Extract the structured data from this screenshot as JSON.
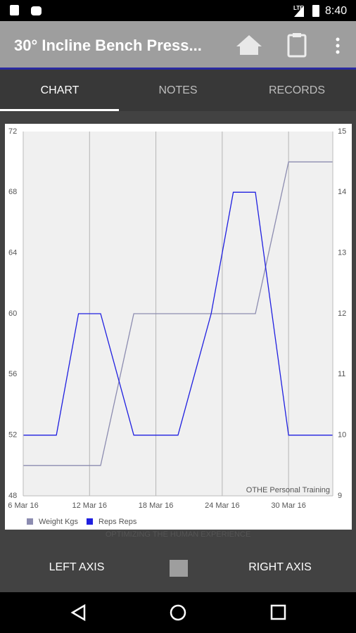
{
  "status_bar": {
    "time": "8:40",
    "network": "LTE"
  },
  "toolbar": {
    "title": "30° Incline Bench Press..."
  },
  "tabs": [
    "CHART",
    "NOTES",
    "RECORDS"
  ],
  "chart_data": {
    "type": "line",
    "watermark": "OTHE Personal Training",
    "background_text": "OPTIMIZING THE HUMAN EXPERIENCE",
    "x": [
      "2016-03-06",
      "2016-03-09",
      "2016-03-11",
      "2016-03-13",
      "2016-03-16",
      "2016-03-20",
      "2016-03-23",
      "2016-03-25",
      "2016-03-27",
      "2016-03-30",
      "2016-04-03"
    ],
    "series": [
      {
        "name": "Weight Kgs",
        "color": "#8c8cb0",
        "values": [
          50,
          50,
          50,
          50,
          60,
          60,
          60,
          60,
          60,
          70,
          70
        ]
      },
      {
        "name": "Reps Reps",
        "color": "#1f1fe0",
        "axis": "y2",
        "values": [
          10,
          10,
          12,
          12,
          10,
          10,
          12,
          14,
          14,
          10,
          10
        ]
      }
    ],
    "xlim": [
      "2016-03-06",
      "2016-04-03"
    ],
    "xticks": [
      {
        "value": "2016-03-06",
        "label": "6 Mar 16"
      },
      {
        "value": "2016-03-12",
        "label": "12 Mar 16"
      },
      {
        "value": "2016-03-18",
        "label": "18 Mar 16"
      },
      {
        "value": "2016-03-24",
        "label": "24 Mar 16"
      },
      {
        "value": "2016-03-30",
        "label": "30 Mar 16"
      }
    ],
    "ylim": [
      48,
      72
    ],
    "yticks": [
      48,
      52,
      56,
      60,
      64,
      68,
      72
    ],
    "y2lim": [
      9,
      15
    ],
    "y2ticks": [
      9,
      10,
      11,
      12,
      13,
      14,
      15
    ],
    "grid": "x",
    "legend": "bottom-left"
  },
  "bottom_buttons": [
    "LEFT AXIS",
    "RIGHT AXIS"
  ]
}
